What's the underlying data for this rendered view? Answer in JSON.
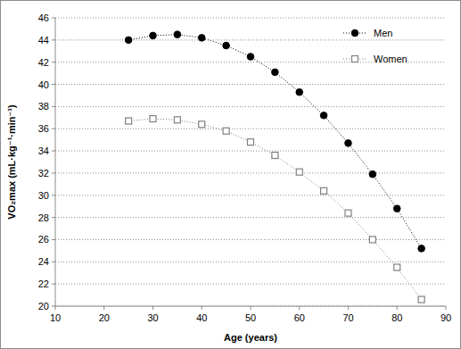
{
  "chart_data": {
    "type": "line",
    "x_label": "Age (years)",
    "y_label": "VO₂max (mL·kg⁻¹·min⁻¹)",
    "x": [
      25,
      30,
      35,
      40,
      45,
      50,
      55,
      60,
      65,
      70,
      75,
      80,
      85
    ],
    "series": [
      {
        "name": "Men",
        "color": "#000000",
        "marker": "circle",
        "line_style": "dotted",
        "values": [
          44.0,
          44.4,
          44.5,
          44.2,
          43.5,
          42.5,
          41.1,
          39.3,
          37.2,
          34.7,
          31.9,
          28.8,
          25.2
        ]
      },
      {
        "name": "Women",
        "color": "#808080",
        "marker": "square",
        "line_style": "dotted",
        "values": [
          36.7,
          36.9,
          36.8,
          36.4,
          35.8,
          34.8,
          33.6,
          32.1,
          30.4,
          28.4,
          26.0,
          23.5,
          20.6
        ]
      }
    ],
    "xlim": [
      10,
      90
    ],
    "xticks": [
      10,
      20,
      30,
      40,
      50,
      60,
      70,
      80,
      90
    ],
    "ylim": [
      20,
      46
    ],
    "yticks": [
      20,
      22,
      24,
      26,
      28,
      30,
      32,
      34,
      36,
      38,
      40,
      42,
      44,
      46
    ],
    "grid": true,
    "legend": "top-right"
  }
}
